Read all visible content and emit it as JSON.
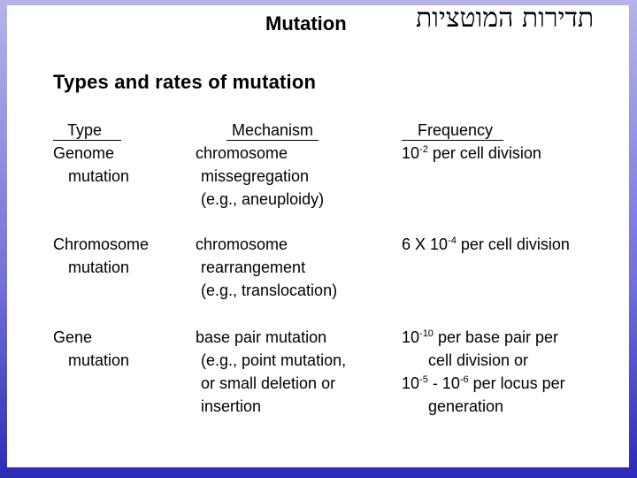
{
  "header": {
    "title": "Mutation",
    "hebrew_title": "תדירות המוטציות"
  },
  "heading": "Types and rates of mutation",
  "table": {
    "columns": [
      "Type",
      "Mechanism",
      "Frequency"
    ],
    "rows": [
      {
        "type": [
          "Genome",
          "mutation"
        ],
        "mechanism": [
          "chromosome",
          "missegregation",
          "(e.g., aneuploidy)"
        ],
        "frequency": [
          [
            "10",
            {
              "sup": "-2"
            },
            " per cell division"
          ]
        ]
      },
      {
        "type": [
          "Chromosome",
          "mutation"
        ],
        "mechanism": [
          "chromosome",
          "rearrangement",
          "(e.g., translocation)"
        ],
        "frequency": [
          [
            "6 X 10",
            {
              "sup": "-4"
            },
            " per cell division"
          ]
        ]
      },
      {
        "type": [
          "Gene",
          "mutation"
        ],
        "mechanism": [
          "base pair mutation",
          "(e.g., point mutation,",
          "or small deletion or",
          "insertion"
        ],
        "frequency": [
          [
            "10",
            {
              "sup": "-10"
            },
            " per base pair per"
          ],
          [
            "cell division or"
          ],
          [
            "10",
            {
              "sup": "-5"
            },
            " - 10",
            {
              "sup": "-6"
            },
            " per locus per"
          ],
          [
            "generation"
          ]
        ]
      }
    ]
  }
}
